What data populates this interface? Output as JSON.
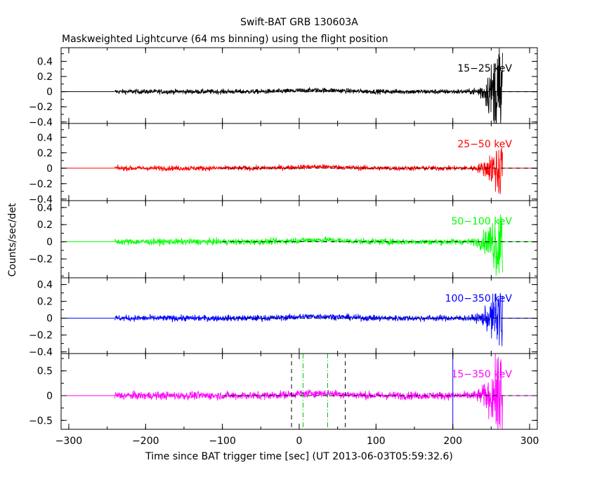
{
  "chart_data": {
    "type": "line",
    "title": "Swift-BAT GRB 130603A",
    "subtitle": "Maskweighted Lightcurve (64 ms binning) using the flight position",
    "xlabel": "Time since BAT trigger time [sec] (UT 2013-06-03T05:59:32.6)",
    "ylabel": "Counts/sec/det",
    "xlim": [
      -310,
      310
    ],
    "x_ticks": [
      -300,
      -200,
      -100,
      0,
      100,
      200,
      300
    ],
    "x_tick_labels": [
      "−300",
      "−200",
      "−100",
      "0",
      "100",
      "200",
      "300"
    ],
    "data_start": -240,
    "data_end": 265,
    "panels": [
      {
        "name": "15−25 keV",
        "color": "#000000",
        "ylim": [
          -0.42,
          0.58
        ],
        "y_ticks": [
          0.4,
          0.2,
          0,
          -0.2,
          -0.4
        ],
        "y_tick_labels": [
          "0.4",
          "0.2",
          "0",
          "−0.2",
          "−0.4"
        ],
        "noise_sigma": 0.016,
        "tail_spike": 0.56
      },
      {
        "name": "25−50 keV",
        "color": "#ff0000",
        "ylim": [
          -0.42,
          0.58
        ],
        "y_ticks": [
          0.4,
          0.2,
          0,
          -0.2,
          -0.4
        ],
        "y_tick_labels": [
          "0.4",
          "0.2",
          "0",
          "−0.2",
          "−0.4"
        ],
        "noise_sigma": 0.016,
        "tail_spike": 0.3
      },
      {
        "name": "50−100 keV",
        "color": "#00ff00",
        "ylim": [
          -0.42,
          0.48
        ],
        "y_ticks": [
          0.4,
          0.2,
          0,
          -0.2
        ],
        "y_tick_labels": [
          "0.4",
          "0.2",
          "0",
          "−0.2"
        ],
        "noise_sigma": 0.018,
        "tail_spike": 0.36
      },
      {
        "name": "100−350 keV",
        "color": "#0000ff",
        "ylim": [
          -0.42,
          0.48
        ],
        "y_ticks": [
          0.4,
          0.2,
          0,
          -0.2,
          -0.4
        ],
        "y_tick_labels": [
          "0.4",
          "0.2",
          "0",
          "−0.2",
          "−0.4"
        ],
        "noise_sigma": 0.018,
        "tail_spike": 0.3
      },
      {
        "name": "15−350 keV",
        "color": "#ff00ff",
        "ylim": [
          -0.68,
          0.85
        ],
        "y_ticks": [
          0.5,
          0,
          -0.5
        ],
        "y_tick_labels": [
          "0.5",
          "0",
          "−0.5"
        ],
        "noise_sigma": 0.04,
        "tail_spike": 0.65
      }
    ],
    "vertical_lines": {
      "black_dashed": [
        -10,
        60
      ],
      "green_dashdot": [
        5,
        37
      ],
      "blue_solid": [
        200
      ]
    },
    "zero_dashed_from": -100
  }
}
